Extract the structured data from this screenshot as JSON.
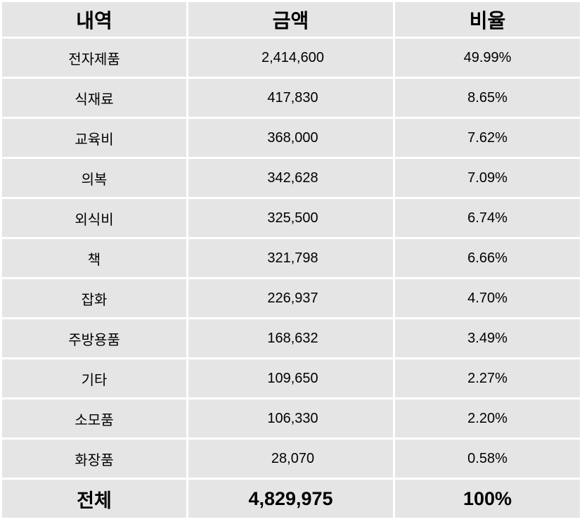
{
  "table": {
    "headers": {
      "item": "내역",
      "amount": "금액",
      "ratio": "비율"
    },
    "rows": [
      {
        "item": "전자제품",
        "amount": "2,414,600",
        "ratio": "49.99%"
      },
      {
        "item": "식재료",
        "amount": "417,830",
        "ratio": "8.65%"
      },
      {
        "item": "교육비",
        "amount": "368,000",
        "ratio": "7.62%"
      },
      {
        "item": "의복",
        "amount": "342,628",
        "ratio": "7.09%"
      },
      {
        "item": "외식비",
        "amount": "325,500",
        "ratio": "6.74%"
      },
      {
        "item": "책",
        "amount": "321,798",
        "ratio": "6.66%"
      },
      {
        "item": "잡화",
        "amount": "226,937",
        "ratio": "4.70%"
      },
      {
        "item": "주방용품",
        "amount": "168,632",
        "ratio": "3.49%"
      },
      {
        "item": "기타",
        "amount": "109,650",
        "ratio": "2.27%"
      },
      {
        "item": "소모품",
        "amount": "106,330",
        "ratio": "2.20%"
      },
      {
        "item": "화장품",
        "amount": "28,070",
        "ratio": "0.58%"
      }
    ],
    "total": {
      "item": "전체",
      "amount": "4,829,975",
      "ratio": "100%"
    }
  }
}
